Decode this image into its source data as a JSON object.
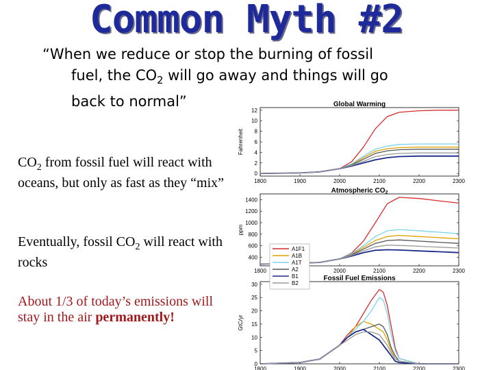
{
  "slide": {
    "title": "Common Myth #2",
    "quote_line1": "“When we reduce or stop the burning of fossil",
    "quote_line2a": "fuel, the CO",
    "quote_line2_sub": "2",
    "quote_line2b": " will go away and things will go",
    "quote_line3": "back to normal”",
    "p1a": "CO",
    "p1_sub": "2",
    "p1b": " from fossil fuel will react with oceans, but only as fast as they “mix”",
    "p2a": "Eventually, fossil CO",
    "p2_sub": "2",
    "p2b": " will react with rocks",
    "p3a": "About 1/3 of today’s emissions will stay in the air ",
    "p3_bold": "permanently!"
  },
  "colors": {
    "title": "#1e2a9a",
    "A1F1": "#d62b2b",
    "A1B": "#e0a000",
    "A1T": "#7ad3e8",
    "A2": "#555555",
    "B1": "#1a2a8a",
    "B2": "#999999"
  },
  "chart_data": [
    {
      "type": "line",
      "title": "Global Warming",
      "ylabel": "Fahrenheit",
      "xticks": [
        1800,
        1900,
        2000,
        2100,
        2200,
        2300
      ],
      "yticks": [
        0,
        2,
        4,
        6,
        8,
        10,
        12
      ],
      "xlim": [
        1800,
        2300
      ],
      "ylim": [
        -0.5,
        12.5
      ],
      "x": [
        1800,
        1900,
        1950,
        2000,
        2030,
        2060,
        2090,
        2120,
        2150,
        2200,
        2250,
        2300
      ],
      "series": [
        {
          "name": "A1F1",
          "values": [
            0,
            0.1,
            0.3,
            0.9,
            2.2,
            5.0,
            8.5,
            10.8,
            11.6,
            11.9,
            12.0,
            12.0
          ]
        },
        {
          "name": "A1B",
          "values": [
            0,
            0.1,
            0.3,
            0.9,
            1.7,
            3.0,
            4.2,
            4.7,
            4.9,
            5.0,
            5.0,
            5.0
          ]
        },
        {
          "name": "A1T",
          "values": [
            0,
            0.1,
            0.3,
            0.9,
            1.8,
            3.3,
            4.6,
            5.2,
            5.5,
            5.6,
            5.6,
            5.6
          ]
        },
        {
          "name": "A2",
          "values": [
            0,
            0.1,
            0.3,
            0.9,
            1.6,
            2.7,
            3.8,
            4.3,
            4.5,
            4.6,
            4.6,
            4.6
          ]
        },
        {
          "name": "B1",
          "values": [
            0,
            0.1,
            0.3,
            0.9,
            1.4,
            2.0,
            2.6,
            3.0,
            3.2,
            3.3,
            3.3,
            3.3
          ]
        },
        {
          "name": "B2",
          "values": [
            0,
            0.1,
            0.3,
            0.9,
            1.5,
            2.3,
            3.2,
            3.6,
            3.8,
            3.9,
            3.9,
            3.9
          ]
        }
      ]
    },
    {
      "type": "line",
      "title": "Atmospheric CO",
      "title_sub": "2",
      "ylabel": "ppm",
      "xticks": [
        1800,
        1900,
        2000,
        2100,
        2200,
        2300
      ],
      "yticks": [
        400,
        600,
        800,
        1000,
        1200,
        1400
      ],
      "xlim": [
        1800,
        2300
      ],
      "ylim": [
        250,
        1500
      ],
      "x": [
        1800,
        1900,
        1950,
        2000,
        2030,
        2060,
        2090,
        2120,
        2150,
        2200,
        2250,
        2300
      ],
      "series": [
        {
          "name": "A1F1",
          "values": [
            280,
            295,
            310,
            370,
            470,
            680,
            1000,
            1330,
            1440,
            1420,
            1380,
            1340
          ]
        },
        {
          "name": "A1B",
          "values": [
            280,
            295,
            310,
            370,
            450,
            570,
            690,
            760,
            780,
            760,
            740,
            720
          ]
        },
        {
          "name": "A1T",
          "values": [
            280,
            295,
            310,
            370,
            460,
            600,
            760,
            860,
            880,
            860,
            835,
            810
          ]
        },
        {
          "name": "A2",
          "values": [
            280,
            295,
            310,
            370,
            440,
            540,
            640,
            690,
            700,
            680,
            660,
            640
          ]
        },
        {
          "name": "B1",
          "values": [
            280,
            295,
            310,
            370,
            420,
            480,
            520,
            530,
            525,
            510,
            495,
            480
          ]
        },
        {
          "name": "B2",
          "values": [
            280,
            295,
            310,
            370,
            430,
            510,
            580,
            610,
            605,
            590,
            575,
            560
          ]
        }
      ]
    },
    {
      "type": "line",
      "title": "Fossil Fuel Emissions",
      "ylabel": "GtC/yr",
      "xticks": [
        1800,
        1900,
        2000,
        2100,
        2200,
        2300
      ],
      "yticks": [
        0,
        5,
        10,
        15,
        20,
        25,
        30
      ],
      "xlim": [
        1800,
        2300
      ],
      "ylim": [
        0,
        31
      ],
      "legend": {
        "position": "top-left",
        "entries": [
          "A1F1",
          "A1B",
          "A1T",
          "A2",
          "B1",
          "B2"
        ]
      },
      "x": [
        1800,
        1900,
        1950,
        2000,
        2020,
        2040,
        2060,
        2080,
        2100,
        2110,
        2120,
        2130,
        2140,
        2150,
        2200,
        2250,
        2300
      ],
      "series": [
        {
          "name": "A1F1",
          "values": [
            0,
            0.5,
            1.8,
            7,
            11,
            14,
            19,
            24,
            28,
            27,
            22,
            14,
            6,
            2,
            0,
            0,
            0
          ]
        },
        {
          "name": "A1B",
          "values": [
            0,
            0.5,
            1.8,
            7,
            10,
            14,
            16,
            15,
            13,
            12,
            9,
            5,
            2,
            1,
            0,
            0,
            0
          ]
        },
        {
          "name": "A1T",
          "values": [
            0,
            0.5,
            1.8,
            7,
            10,
            13,
            16,
            20,
            25,
            24,
            19,
            11,
            5,
            2,
            0,
            0,
            0
          ]
        },
        {
          "name": "A2",
          "values": [
            0,
            0.5,
            1.8,
            7,
            10,
            12,
            13,
            14,
            15,
            14,
            11,
            6,
            3,
            1,
            0,
            0,
            0
          ]
        },
        {
          "name": "B1",
          "values": [
            0,
            0.5,
            1.8,
            7,
            10,
            12,
            13,
            11,
            9,
            7,
            5,
            3,
            1,
            0.5,
            0,
            0,
            0
          ]
        },
        {
          "name": "B2",
          "values": [
            0,
            0.5,
            1.8,
            7,
            9,
            11,
            12,
            12,
            11,
            9,
            7,
            4,
            2,
            1,
            0,
            0,
            0
          ]
        }
      ]
    }
  ]
}
